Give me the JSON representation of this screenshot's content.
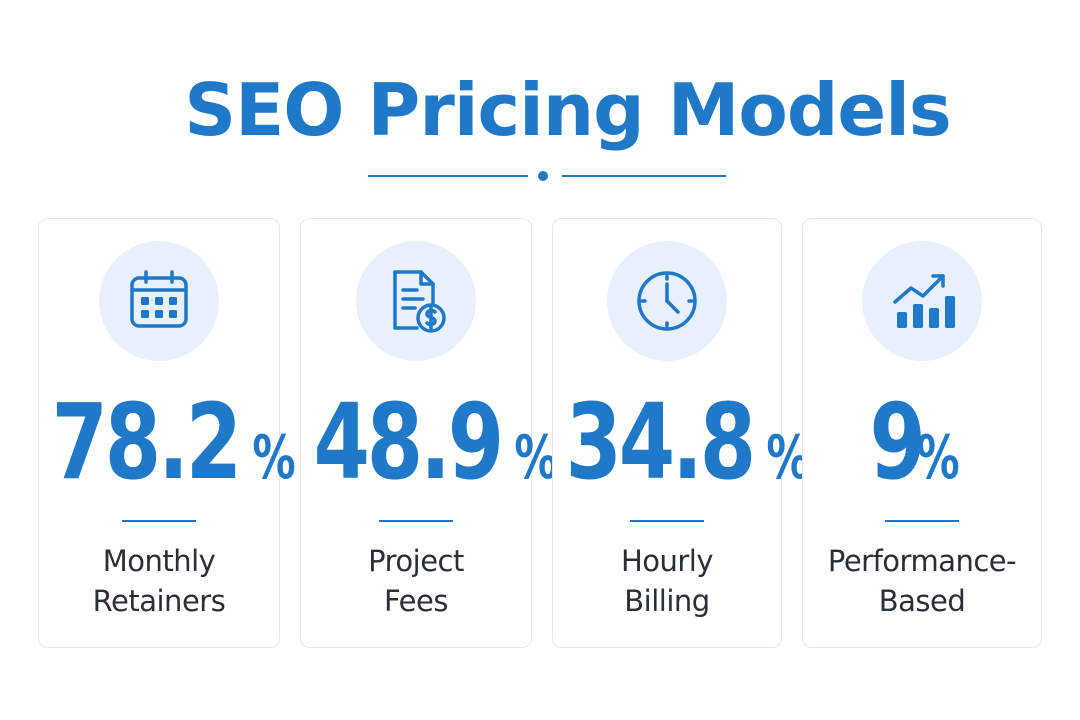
{
  "header": {
    "title": "SEO Pricing Models"
  },
  "colors": {
    "accent": "#1f78c8",
    "icon_bg": "#e8f1fb",
    "text": "#2a2f36",
    "card_border": "#e4e8ee"
  },
  "cards": [
    {
      "icon": "calendar-icon",
      "value": "78.2",
      "unit": "%",
      "label_line1": "Monthly",
      "label_line2": "Retainers"
    },
    {
      "icon": "invoice-dollar-icon",
      "value": "48.9",
      "unit": "%",
      "label_line1": "Project",
      "label_line2": "Fees"
    },
    {
      "icon": "clock-icon",
      "value": "34.8",
      "unit": "%",
      "label_line1": "Hourly",
      "label_line2": "Billing"
    },
    {
      "icon": "growth-chart-icon",
      "value": "9",
      "unit": "%",
      "label_line1": "Performance-",
      "label_line2": "Based"
    }
  ]
}
